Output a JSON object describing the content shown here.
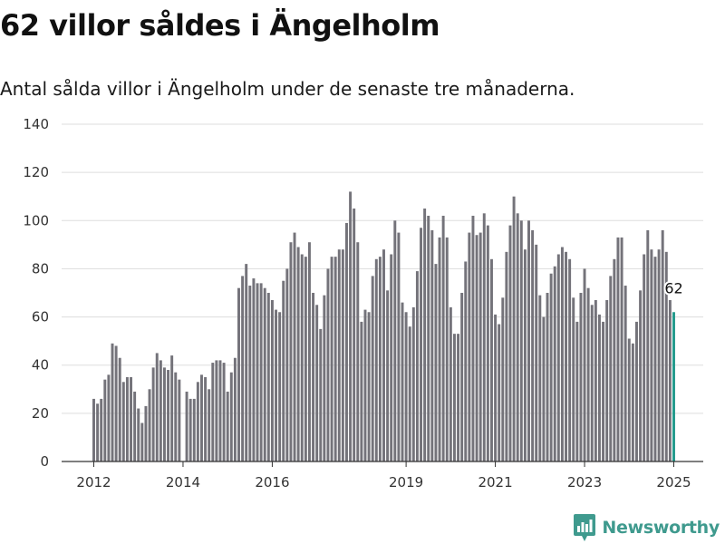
{
  "title": "62 villor såldes i Ängelholm",
  "subtitle": "Antal sålda villor i Ängelholm under de senaste tre månaderna.",
  "brand": {
    "name": "Newsworthy",
    "icon": "newsworthy-logo-icon",
    "color": "#3f9a8e"
  },
  "chart_data": {
    "type": "bar",
    "title": "",
    "xlabel": "",
    "ylabel": "",
    "ylim": [
      0,
      140
    ],
    "y_ticks": [
      0,
      20,
      40,
      60,
      80,
      100,
      120,
      140
    ],
    "x_ticks": [
      "2012",
      "2014",
      "2016",
      "2019",
      "2021",
      "2023",
      "2025"
    ],
    "grid": "horizontal",
    "colors": {
      "bars": "#74737a",
      "highlight": "#229a8c",
      "grid": "#dddddd",
      "axis": "#333333"
    },
    "annotation": {
      "text": "62",
      "target": "last"
    },
    "series": [
      {
        "values": [
          26,
          24,
          26,
          34,
          36,
          49,
          48,
          43,
          33,
          35,
          35,
          29,
          22,
          16,
          23,
          30,
          39,
          45,
          42,
          39,
          38,
          44,
          37,
          34,
          0,
          29,
          26,
          26,
          33,
          36,
          35,
          30,
          41,
          42,
          42,
          41,
          29,
          37,
          43,
          72,
          77,
          82,
          73,
          76,
          74,
          74,
          72,
          70,
          67,
          63,
          62,
          75,
          80,
          91,
          95,
          89,
          86,
          85,
          91,
          70,
          65,
          55,
          69,
          80,
          85,
          85,
          88,
          88,
          99,
          112,
          105,
          91,
          58,
          63,
          62,
          77,
          84,
          85,
          88,
          71,
          86,
          100,
          95,
          66,
          62,
          56,
          64,
          79,
          97,
          105,
          102,
          96,
          82,
          93,
          102,
          93,
          64,
          53,
          53,
          70,
          83,
          95,
          102,
          94,
          95,
          103,
          98,
          84,
          61,
          57,
          68,
          87,
          98,
          110,
          103,
          100,
          88,
          100,
          96,
          90,
          69,
          60,
          70,
          78,
          81,
          86,
          89,
          87,
          84,
          68,
          58,
          70,
          80,
          72,
          65,
          67,
          61,
          58,
          67,
          77,
          84,
          93,
          93,
          73,
          51,
          49,
          58,
          71,
          86,
          96,
          88,
          85,
          88,
          96,
          87,
          67,
          62
        ]
      }
    ]
  }
}
